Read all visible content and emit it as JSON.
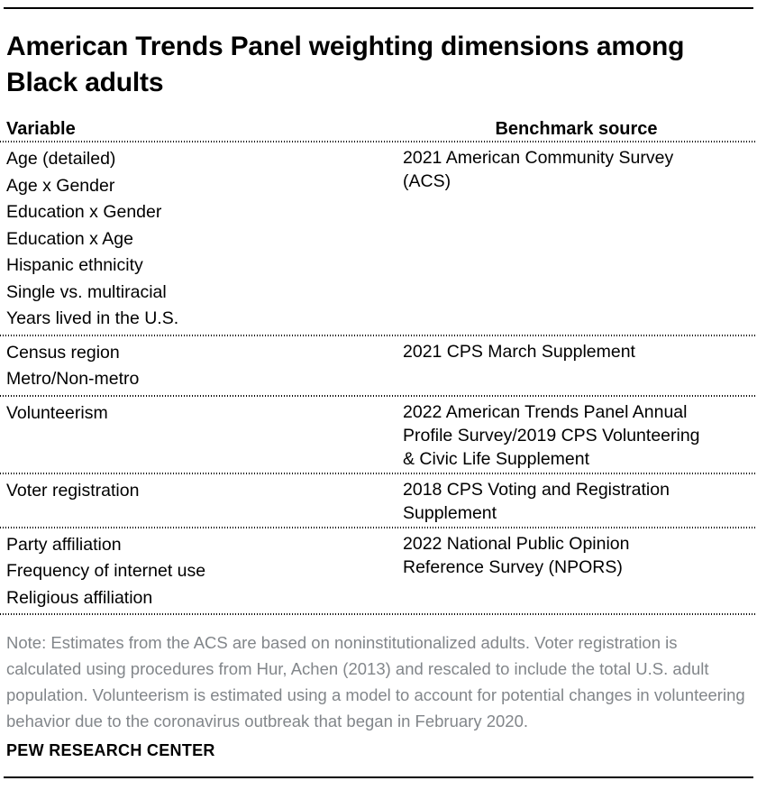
{
  "chart_data": {
    "type": "table",
    "title": "American Trends Panel weighting dimensions among Black adults",
    "columns": [
      "Variable",
      "Benchmark source"
    ],
    "rows": [
      {
        "variables": [
          "Age (detailed)",
          "Age x Gender",
          "Education x Gender",
          "Education x Age",
          "Hispanic ethnicity",
          "Single vs. multiracial",
          "Years lived in the U.S."
        ],
        "source_lines": [
          "2021 American Community Survey",
          "(ACS)"
        ]
      },
      {
        "variables": [
          "Census region",
          "Metro/Non-metro"
        ],
        "source_lines": [
          "2021 CPS March Supplement"
        ]
      },
      {
        "variables": [
          "Volunteerism"
        ],
        "source_lines": [
          "2022 American Trends Panel Annual",
          "Profile Survey/2019 CPS Volunteering",
          "& Civic Life Supplement"
        ]
      },
      {
        "variables": [
          "Voter registration"
        ],
        "source_lines": [
          "2018 CPS Voting and Registration",
          "Supplement"
        ]
      },
      {
        "variables": [
          "Party affiliation",
          "Frequency of internet use",
          "Religious affiliation"
        ],
        "source_lines": [
          "2022 National Public Opinion",
          "Reference Survey (NPORS)"
        ]
      }
    ],
    "note": "Note: Estimates from the ACS are based on noninstitutionalized adults. Voter registration is calculated using procedures from Hur, Achen (2013) and rescaled to include the total U.S. adult population. Volunteerism is estimated using a model to account for potential changes in volunteering behavior due to the coronavirus outbreak that began in February 2020.",
    "source_label": "PEW RESEARCH CENTER",
    "layout": {
      "legend": "none",
      "grid": "dotted-row-separators"
    }
  },
  "colors": {
    "text": "#000000",
    "note_gray": "#82868a",
    "rule": "#000000",
    "background": "#ffffff"
  }
}
